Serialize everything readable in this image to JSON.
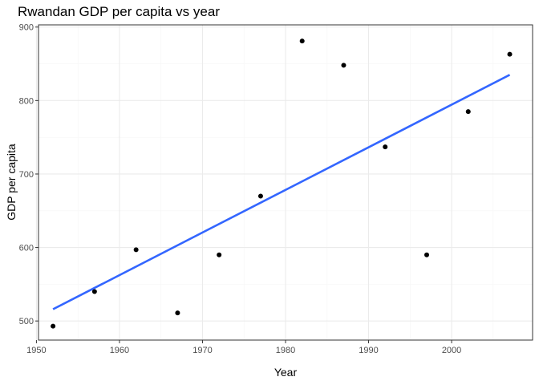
{
  "chart_data": {
    "type": "scatter",
    "title": "Rwandan GDP per capita vs year",
    "xlabel": "Year",
    "ylabel": "GDP per capita",
    "xlim": [
      1950.25,
      2009.75
    ],
    "ylim": [
      474,
      903
    ],
    "x_ticks": [
      1950,
      1960,
      1970,
      1980,
      1990,
      2000
    ],
    "x_minor_ticks": [
      1955,
      1965,
      1975,
      1985,
      1995,
      2005
    ],
    "y_ticks": [
      500,
      600,
      700,
      800,
      900
    ],
    "y_minor_ticks": [
      550,
      650,
      750,
      850
    ],
    "grid": true,
    "points": [
      {
        "x": 1952,
        "y": 493
      },
      {
        "x": 1957,
        "y": 540
      },
      {
        "x": 1962,
        "y": 597
      },
      {
        "x": 1967,
        "y": 511
      },
      {
        "x": 1972,
        "y": 590
      },
      {
        "x": 1977,
        "y": 670
      },
      {
        "x": 1982,
        "y": 881
      },
      {
        "x": 1987,
        "y": 848
      },
      {
        "x": 1992,
        "y": 737
      },
      {
        "x": 1997,
        "y": 590
      },
      {
        "x": 2002,
        "y": 785
      },
      {
        "x": 2007,
        "y": 863
      }
    ],
    "trend_line": {
      "x": [
        1952,
        2007
      ],
      "y": [
        516,
        835
      ]
    },
    "colors": {
      "points": "#000000",
      "trend_line": "#3366ff",
      "grid_major": "#ebebeb",
      "grid_minor": "#f5f5f5",
      "panel_border": "#333333"
    }
  }
}
